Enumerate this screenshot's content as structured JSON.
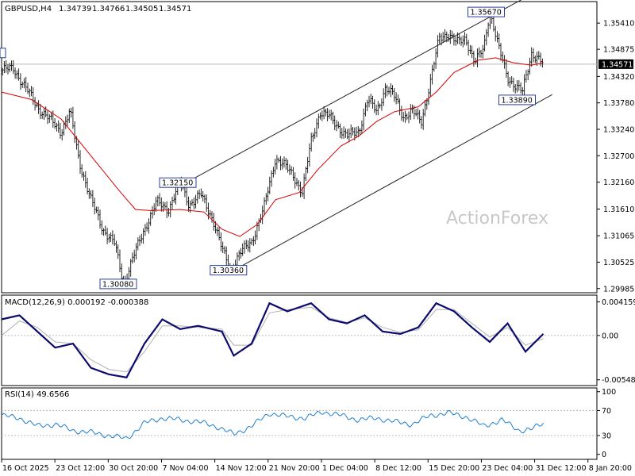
{
  "chart_data": [
    {
      "type": "candlestick",
      "symbol": "GBPUSD,H4",
      "ohlc": {
        "open": "1.34739",
        "high": "1.34766",
        "low": "1.34505",
        "close": "1.34571"
      },
      "current_price": "1.34571",
      "watermark": "ActionForex",
      "y_ticks": [
        "1.35410",
        "1.34875",
        "1.34320",
        "1.33780",
        "1.33240",
        "1.32700",
        "1.32160",
        "1.31610",
        "1.31065",
        "1.30525",
        "1.29985"
      ],
      "x_ticks": [
        "16 Oct 2025",
        "23 Oct 12:00",
        "30 Oct 20:00",
        "7 Nov 04:00",
        "14 Nov 12:00",
        "21 Nov 20:00",
        "1 Dec 04:00",
        "8 Dec 12:00",
        "15 Dec 20:00",
        "23 Dec 04:00",
        "31 Dec 12:00",
        "8 Jan 20:00"
      ],
      "annotations": [
        {
          "text": "1.30080",
          "price": 1.3008,
          "t": 0.2
        },
        {
          "text": "1.32150",
          "price": 1.3215,
          "t": 0.3
        },
        {
          "text": "1.30360",
          "price": 1.3036,
          "t": 0.385
        },
        {
          "text": "1.35670",
          "price": 1.3567,
          "t": 0.818
        },
        {
          "text": "1.33890",
          "price": 1.3389,
          "t": 0.87
        }
      ],
      "price_path": [
        [
          0.0,
          1.3445
        ],
        [
          0.02,
          1.3448
        ],
        [
          0.04,
          1.341
        ],
        [
          0.06,
          1.337
        ],
        [
          0.08,
          1.3345
        ],
        [
          0.1,
          1.332
        ],
        [
          0.115,
          1.336
        ],
        [
          0.13,
          1.326
        ],
        [
          0.15,
          1.318
        ],
        [
          0.17,
          1.312
        ],
        [
          0.19,
          1.309
        ],
        [
          0.205,
          1.3008
        ],
        [
          0.22,
          1.306
        ],
        [
          0.24,
          1.312
        ],
        [
          0.26,
          1.3175
        ],
        [
          0.28,
          1.316
        ],
        [
          0.3,
          1.3215
        ],
        [
          0.315,
          1.317
        ],
        [
          0.335,
          1.319
        ],
        [
          0.355,
          1.314
        ],
        [
          0.37,
          1.308
        ],
        [
          0.385,
          1.3036
        ],
        [
          0.4,
          1.307
        ],
        [
          0.42,
          1.3095
        ],
        [
          0.44,
          1.316
        ],
        [
          0.46,
          1.3265
        ],
        [
          0.475,
          1.325
        ],
        [
          0.49,
          1.323
        ],
        [
          0.505,
          1.3195
        ],
        [
          0.52,
          1.33
        ],
        [
          0.535,
          1.336
        ],
        [
          0.55,
          1.335
        ],
        [
          0.565,
          1.333
        ],
        [
          0.58,
          1.331
        ],
        [
          0.6,
          1.332
        ],
        [
          0.615,
          1.3385
        ],
        [
          0.63,
          1.336
        ],
        [
          0.645,
          1.341
        ],
        [
          0.66,
          1.339
        ],
        [
          0.675,
          1.335
        ],
        [
          0.69,
          1.336
        ],
        [
          0.705,
          1.334
        ],
        [
          0.72,
          1.342
        ],
        [
          0.735,
          1.351
        ],
        [
          0.75,
          1.352
        ],
        [
          0.765,
          1.35
        ],
        [
          0.78,
          1.351
        ],
        [
          0.795,
          1.346
        ],
        [
          0.81,
          1.349
        ],
        [
          0.82,
          1.3567
        ],
        [
          0.835,
          1.349
        ],
        [
          0.85,
          1.343
        ],
        [
          0.865,
          1.341
        ],
        [
          0.875,
          1.34
        ],
        [
          0.89,
          1.348
        ],
        [
          0.9,
          1.347
        ],
        [
          0.91,
          1.3457
        ]
      ],
      "moving_average": [
        [
          0.0,
          1.34
        ],
        [
          0.05,
          1.3385
        ],
        [
          0.1,
          1.3345
        ],
        [
          0.15,
          1.327
        ],
        [
          0.2,
          1.3195
        ],
        [
          0.225,
          1.316
        ],
        [
          0.25,
          1.3158
        ],
        [
          0.3,
          1.316
        ],
        [
          0.34,
          1.3155
        ],
        [
          0.37,
          1.312
        ],
        [
          0.4,
          1.3105
        ],
        [
          0.43,
          1.313
        ],
        [
          0.46,
          1.318
        ],
        [
          0.5,
          1.3195
        ],
        [
          0.53,
          1.324
        ],
        [
          0.57,
          1.329
        ],
        [
          0.6,
          1.331
        ],
        [
          0.63,
          1.334
        ],
        [
          0.66,
          1.336
        ],
        [
          0.7,
          1.337
        ],
        [
          0.73,
          1.34
        ],
        [
          0.76,
          1.344
        ],
        [
          0.8,
          1.3465
        ],
        [
          0.83,
          1.347
        ],
        [
          0.86,
          1.346
        ],
        [
          0.89,
          1.3455
        ],
        [
          0.91,
          1.346
        ]
      ],
      "channel_upper": [
        [
          0.31,
          1.3215
        ],
        [
          0.875,
          1.359
        ]
      ],
      "channel_lower": [
        [
          0.39,
          1.3036
        ],
        [
          0.925,
          1.3395
        ]
      ]
    },
    {
      "type": "line",
      "title": "MACD(12,26,9) 0.000192 -0.000388",
      "y_ticks": [
        "0.004159",
        "0.00",
        "-0.005485"
      ],
      "macd": [
        [
          0.0,
          0.002
        ],
        [
          0.03,
          0.0025
        ],
        [
          0.06,
          0.0005
        ],
        [
          0.09,
          -0.0015
        ],
        [
          0.12,
          -0.001
        ],
        [
          0.15,
          -0.004
        ],
        [
          0.18,
          -0.0048
        ],
        [
          0.21,
          -0.0052
        ],
        [
          0.24,
          -0.001
        ],
        [
          0.27,
          0.002
        ],
        [
          0.3,
          0.0008
        ],
        [
          0.33,
          0.0012
        ],
        [
          0.37,
          0.0005
        ],
        [
          0.39,
          -0.0025
        ],
        [
          0.42,
          -0.001
        ],
        [
          0.45,
          0.004
        ],
        [
          0.48,
          0.003
        ],
        [
          0.52,
          0.004
        ],
        [
          0.55,
          0.002
        ],
        [
          0.58,
          0.0015
        ],
        [
          0.61,
          0.0025
        ],
        [
          0.64,
          0.0005
        ],
        [
          0.67,
          0.0002
        ],
        [
          0.7,
          0.001
        ],
        [
          0.73,
          0.004
        ],
        [
          0.76,
          0.003
        ],
        [
          0.79,
          0.001
        ],
        [
          0.82,
          -0.0008
        ],
        [
          0.85,
          0.0015
        ],
        [
          0.88,
          -0.002
        ],
        [
          0.91,
          0.0002
        ]
      ],
      "signal": [
        [
          0.0,
          0.0
        ],
        [
          0.03,
          0.0018
        ],
        [
          0.06,
          0.001
        ],
        [
          0.09,
          -0.0008
        ],
        [
          0.12,
          -0.001
        ],
        [
          0.15,
          -0.003
        ],
        [
          0.18,
          -0.0042
        ],
        [
          0.21,
          -0.0045
        ],
        [
          0.24,
          -0.002
        ],
        [
          0.27,
          0.0012
        ],
        [
          0.3,
          0.0012
        ],
        [
          0.33,
          0.001
        ],
        [
          0.37,
          0.0008
        ],
        [
          0.39,
          -0.0012
        ],
        [
          0.42,
          -0.0012
        ],
        [
          0.45,
          0.0028
        ],
        [
          0.48,
          0.0032
        ],
        [
          0.52,
          0.0035
        ],
        [
          0.55,
          0.0022
        ],
        [
          0.58,
          0.0016
        ],
        [
          0.61,
          0.0022
        ],
        [
          0.64,
          0.001
        ],
        [
          0.67,
          0.0004
        ],
        [
          0.7,
          0.0007
        ],
        [
          0.73,
          0.0032
        ],
        [
          0.76,
          0.0032
        ],
        [
          0.79,
          0.0015
        ],
        [
          0.82,
          -0.0002
        ],
        [
          0.85,
          0.001
        ],
        [
          0.88,
          -0.0012
        ],
        [
          0.91,
          -0.0004
        ]
      ]
    },
    {
      "type": "line",
      "title": "RSI(14) 49.6566",
      "y_ticks": [
        "100",
        "70",
        "30",
        "0"
      ],
      "guides": [
        70,
        30
      ],
      "rsi": [
        [
          0.0,
          62
        ],
        [
          0.03,
          58
        ],
        [
          0.06,
          45
        ],
        [
          0.09,
          48
        ],
        [
          0.12,
          38
        ],
        [
          0.15,
          35
        ],
        [
          0.18,
          30
        ],
        [
          0.21,
          25
        ],
        [
          0.24,
          50
        ],
        [
          0.27,
          58
        ],
        [
          0.3,
          55
        ],
        [
          0.33,
          52
        ],
        [
          0.36,
          45
        ],
        [
          0.39,
          32
        ],
        [
          0.42,
          45
        ],
        [
          0.45,
          66
        ],
        [
          0.48,
          60
        ],
        [
          0.51,
          58
        ],
        [
          0.54,
          68
        ],
        [
          0.57,
          62
        ],
        [
          0.6,
          55
        ],
        [
          0.63,
          58
        ],
        [
          0.66,
          52
        ],
        [
          0.69,
          48
        ],
        [
          0.72,
          62
        ],
        [
          0.75,
          66
        ],
        [
          0.78,
          60
        ],
        [
          0.81,
          45
        ],
        [
          0.84,
          55
        ],
        [
          0.87,
          38
        ],
        [
          0.89,
          40
        ],
        [
          0.91,
          49.66
        ]
      ]
    }
  ]
}
